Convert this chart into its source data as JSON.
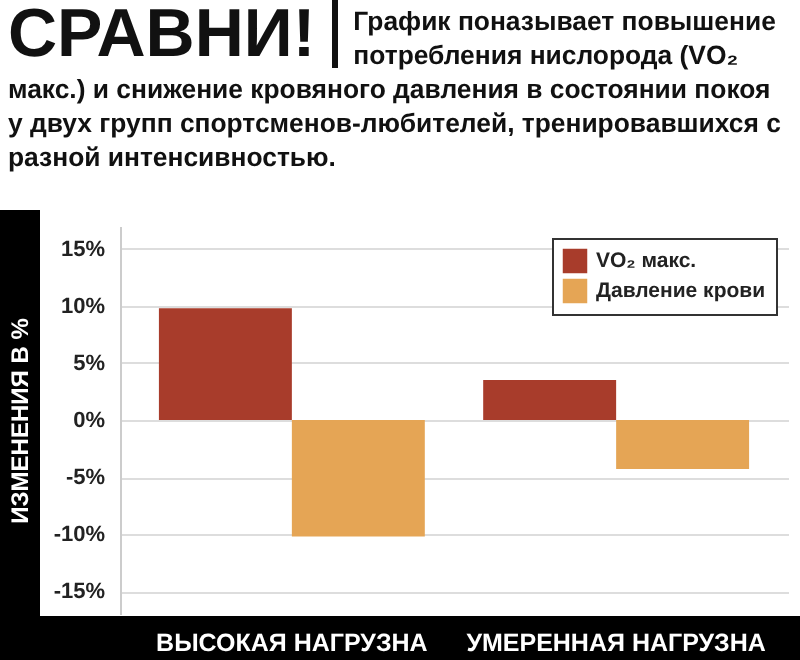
{
  "chart_data": {
    "type": "bar",
    "title": "СРАВНИ!",
    "subtitle": "График поназывает повышение потребления нислорода (VO₂ макс.) и снижение кровяного давления в состоянии покоя у двух групп спортсменов-любителей, тренировавшихся с разной интенсивностью.",
    "ylabel": "ИЗМЕНЕНИЯ В %",
    "categories": [
      "ВЫСОКАЯ НАГРУЗНА",
      "УМЕРЕННАЯ НАГРУЗНА"
    ],
    "series": [
      {
        "name": "VO₂ макс.",
        "color": "#a83c2b",
        "values": [
          9.8,
          3.5
        ]
      },
      {
        "name": "Давление крови",
        "color": "#e5a555",
        "values": [
          -10.2,
          -4.3
        ]
      }
    ],
    "ylim": [
      -17,
      17
    ],
    "yticks": [
      {
        "value": 15,
        "label": "15%"
      },
      {
        "value": 10,
        "label": "10%"
      },
      {
        "value": 5,
        "label": "5%"
      },
      {
        "value": 0,
        "label": "0%"
      },
      {
        "value": -5,
        "label": "-5%"
      },
      {
        "value": -10,
        "label": "-10%"
      },
      {
        "value": -15,
        "label": "-15%"
      }
    ],
    "grid": "y",
    "legend": "top right"
  }
}
